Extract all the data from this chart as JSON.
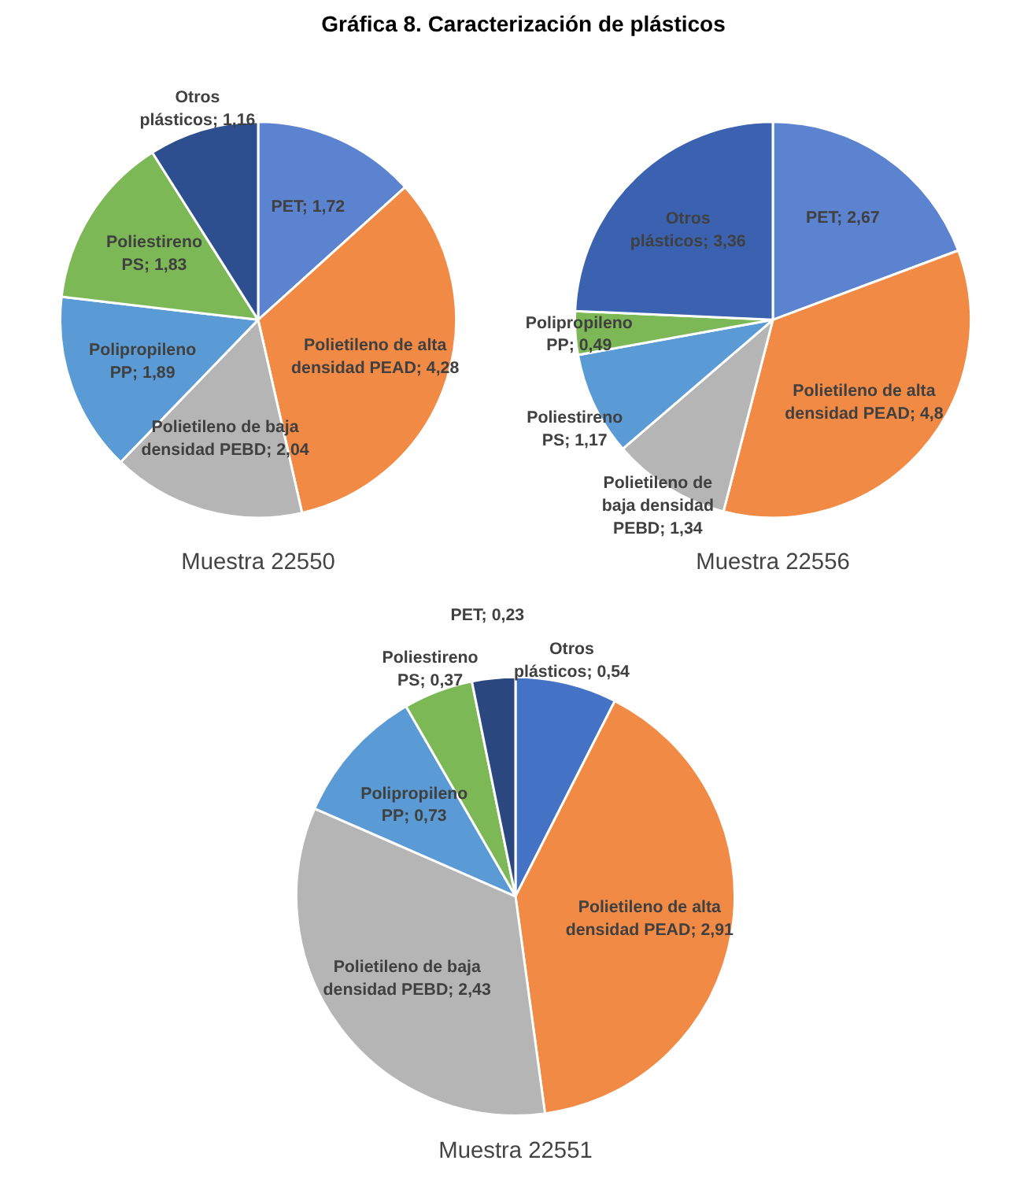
{
  "chart_data": [
    {
      "type": "pie",
      "title": "Gráfica 8. Caracterización de plásticos",
      "xlabel": "Muestra 22550",
      "categories": [
        "PET",
        "Polietileno de alta densidad PEAD",
        "Polietileno de baja densidad PEBD",
        "Polipropileno PP",
        "Poliestireno PS",
        "Otros plásticos"
      ],
      "values": [
        1.72,
        4.28,
        2.04,
        1.89,
        1.83,
        1.16
      ],
      "value_labels": [
        "1,72",
        "4,28",
        "2,04",
        "1,89",
        "1,83",
        "1,16"
      ],
      "colors": [
        "#5b83cf",
        "#f08a45",
        "#b5b5b5",
        "#5b9bd5",
        "#7db856",
        "#2e4f8f"
      ],
      "data_labels": true
    },
    {
      "type": "pie",
      "xlabel": "Muestra 22556",
      "categories": [
        "PET",
        "Polietileno de alta densidad PEAD",
        "Polietileno de baja densidad PEBD",
        "Poliestireno PS",
        "Polipropileno PP",
        "Otros plásticos"
      ],
      "values": [
        2.67,
        4.8,
        1.34,
        1.17,
        0.49,
        3.36
      ],
      "value_labels": [
        "2,67",
        "4,8",
        "1,34",
        "1,17",
        "0,49",
        "3,36"
      ],
      "colors": [
        "#5b83cf",
        "#f08a45",
        "#b5b5b5",
        "#5b9bd5",
        "#7db856",
        "#3a62b0"
      ],
      "data_labels": true
    },
    {
      "type": "pie",
      "xlabel": "Muestra 22551",
      "categories": [
        "Otros plásticos",
        "Polietileno de alta densidad PEAD",
        "Polietileno de baja densidad PEBD",
        "Polipropileno PP",
        "Poliestireno PS",
        "PET"
      ],
      "values": [
        0.54,
        2.91,
        2.43,
        0.73,
        0.37,
        0.23
      ],
      "value_labels": [
        "0,54",
        "2,91",
        "2,43",
        "0,73",
        "0,37",
        "0,23"
      ],
      "colors": [
        "#4472c4",
        "#f08a45",
        "#b5b5b5",
        "#5b9bd5",
        "#7db856",
        "#2a477f"
      ],
      "data_labels": true
    }
  ]
}
